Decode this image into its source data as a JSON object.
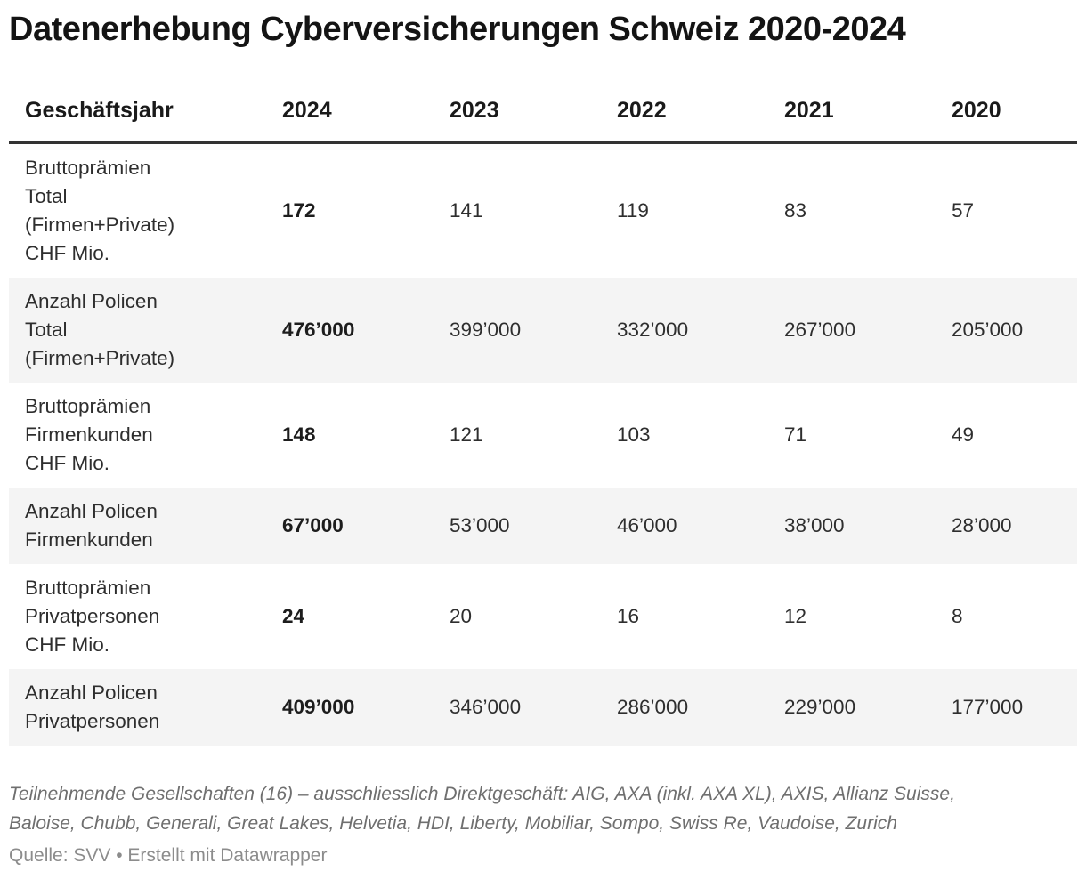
{
  "header": {
    "title": "Datenerhebung Cyberversicherungen Schweiz 2020-2024"
  },
  "chart_data": {
    "type": "table",
    "title": "Datenerhebung Cyberversicherungen Schweiz 2020-2024",
    "columns": [
      "Geschäftsjahr",
      "2024",
      "2023",
      "2022",
      "2021",
      "2020"
    ],
    "highlight_column": "2024",
    "zebra_striping": true,
    "rows": [
      {
        "label": "Bruttoprämien Total (Firmen+Private) CHF Mio.",
        "label_display": "Bruttoprämien\nTotal\n(Firmen+Private)\nCHF Mio.",
        "values": [
          "172",
          "141",
          "119",
          "83",
          "57"
        ],
        "values_num": [
          172,
          141,
          119,
          83,
          57
        ]
      },
      {
        "label": "Anzahl Policen Total (Firmen+Private)",
        "label_display": "Anzahl Policen\nTotal\n(Firmen+Private)",
        "values": [
          "476’000",
          "399’000",
          "332’000",
          "267’000",
          "205’000"
        ],
        "values_num": [
          476000,
          399000,
          332000,
          267000,
          205000
        ]
      },
      {
        "label": "Bruttoprämien Firmenkunden CHF Mio.",
        "label_display": "Bruttoprämien\nFirmenkunden\nCHF Mio.",
        "values": [
          "148",
          "121",
          "103",
          "71",
          "49"
        ],
        "values_num": [
          148,
          121,
          103,
          71,
          49
        ]
      },
      {
        "label": "Anzahl Policen Firmenkunden",
        "label_display": "Anzahl Policen\nFirmenkunden",
        "values": [
          "67’000",
          "53’000",
          "46’000",
          "38’000",
          "28’000"
        ],
        "values_num": [
          67000,
          53000,
          46000,
          38000,
          28000
        ]
      },
      {
        "label": "Bruttoprämien Privatpersonen CHF Mio.",
        "label_display": "Bruttoprämien\nPrivatpersonen\nCHF Mio.",
        "values": [
          "24",
          "20",
          "16",
          "12",
          "8"
        ],
        "values_num": [
          24,
          20,
          16,
          12,
          8
        ]
      },
      {
        "label": "Anzahl Policen Privatpersonen",
        "label_display": "Anzahl Policen\nPrivatpersonen",
        "values": [
          "409’000",
          "346’000",
          "286’000",
          "229’000",
          "177’000"
        ],
        "values_num": [
          409000,
          346000,
          286000,
          229000,
          177000
        ]
      }
    ]
  },
  "footer": {
    "notes": "Teilnehmende Gesellschaften (16) – ausschliesslich Direktgeschäft: AIG, AXA (inkl. AXA XL), AXIS, Allianz Suisse,\nBaloise, Chubb, Generali, Great Lakes, Helvetia, HDI, Liberty, Mobiliar, Sompo, Swiss Re, Vaudoise, Zurich",
    "source": "Quelle: SVV • Erstellt mit Datawrapper"
  },
  "colors": {
    "title_text": "#141414",
    "body_text": "#2e2e2e",
    "header_rule": "#333333",
    "zebra_row_bg": "#f4f4f4",
    "notes_text": "#6f6f6f",
    "source_text": "#8c8c8c",
    "background": "#ffffff"
  }
}
